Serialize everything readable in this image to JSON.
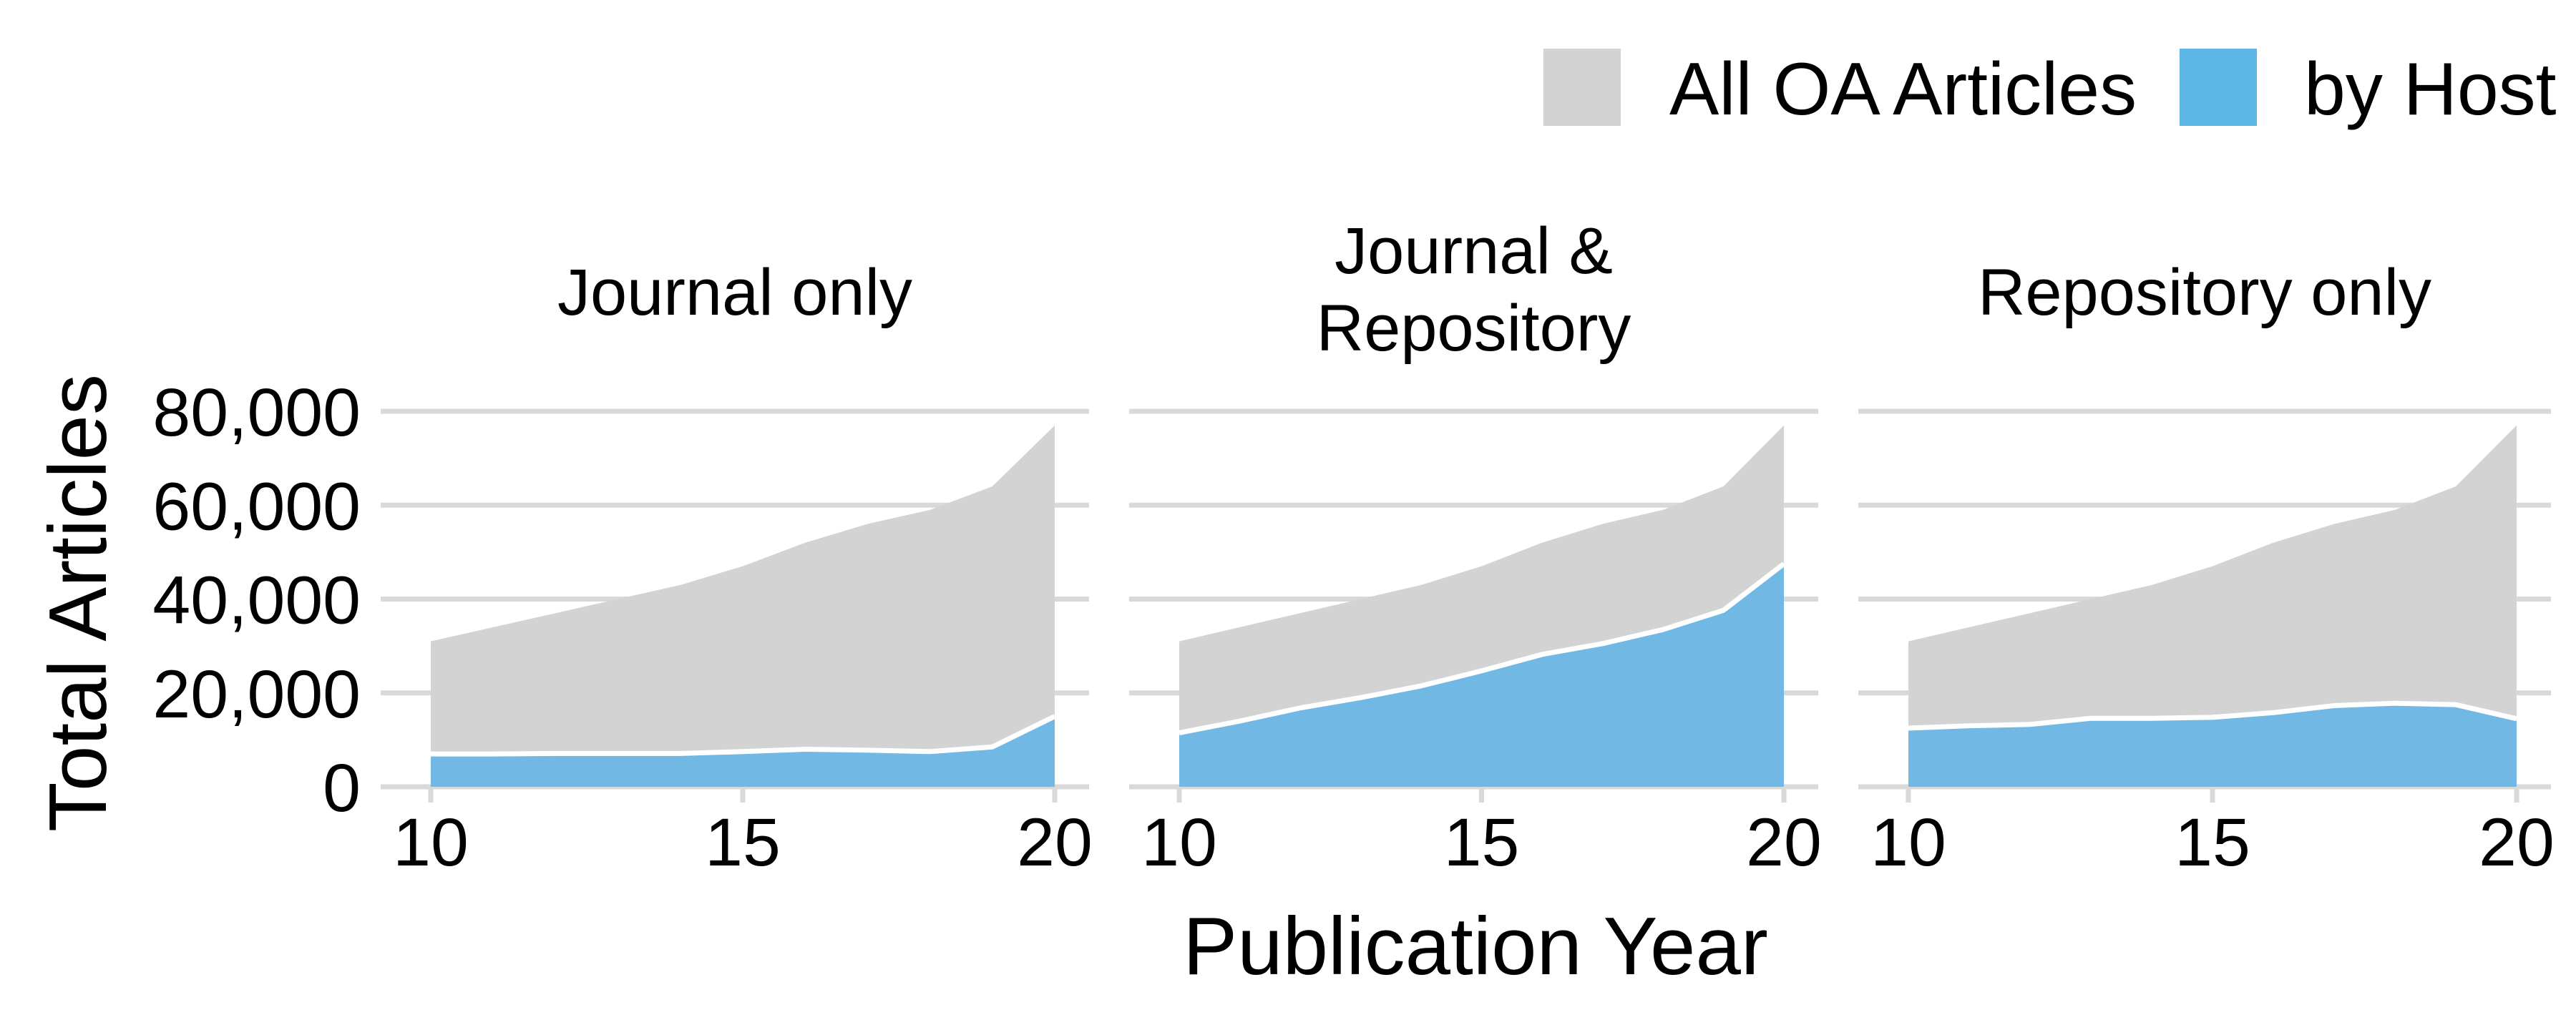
{
  "chart_data": {
    "type": "area",
    "facet_label_layout": "facets in one row, sharing y axis",
    "legend": {
      "position": "top-right",
      "entries": [
        {
          "label": "All OA Articles",
          "color": "#d3d3d3"
        },
        {
          "label": "by Host",
          "color": "#5fb6e9"
        }
      ]
    },
    "colors": {
      "all": "#d3d3d3",
      "host": "#71b9e4",
      "legend_all": "#d3d3d3",
      "legend_host": "#5fb6e9",
      "grid": "#d9d9d9",
      "host_outline": "#ffffff"
    },
    "xlabel": "Publication Year",
    "ylabel": "Total Articles",
    "xlim": [
      10,
      20
    ],
    "ylim": [
      0,
      80000
    ],
    "x_ticks": [
      10,
      15,
      20
    ],
    "x_tick_labels": [
      "10",
      "15",
      "20"
    ],
    "y_ticks": [
      0,
      20000,
      40000,
      60000,
      80000
    ],
    "y_tick_labels": [
      "0",
      "20,000",
      "40,000",
      "60,000",
      "80,000"
    ],
    "grid": "horizontal major gridlines",
    "x": [
      10,
      11,
      12,
      13,
      14,
      15,
      16,
      17,
      18,
      19,
      20
    ],
    "all_oa_articles": [
      31000,
      34000,
      37000,
      40000,
      43000,
      47000,
      52000,
      56000,
      59000,
      64000,
      77000
    ],
    "panels": [
      {
        "title_lines": [
          "Journal only"
        ],
        "host_values": [
          7000,
          7000,
          7100,
          7100,
          7100,
          7500,
          8000,
          7800,
          7500,
          8500,
          15000
        ]
      },
      {
        "title_lines": [
          "Journal &",
          "Repository"
        ],
        "host_values": [
          11500,
          14000,
          16800,
          19000,
          21500,
          24700,
          28200,
          30500,
          33500,
          37600,
          47500
        ]
      },
      {
        "title_lines": [
          "Repository only"
        ],
        "host_values": [
          12500,
          13000,
          13300,
          14600,
          14600,
          14800,
          15800,
          17300,
          17800,
          17500,
          14500
        ]
      }
    ]
  }
}
